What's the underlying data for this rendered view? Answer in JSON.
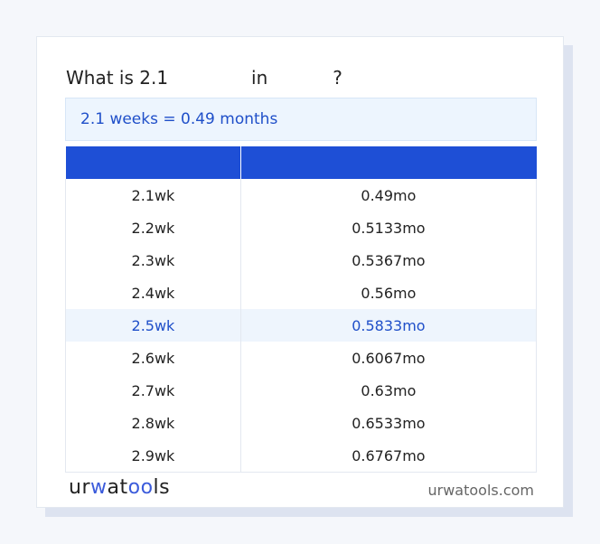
{
  "title": {
    "prefix": "What is 2.1",
    "middle": "in",
    "suffix": "?"
  },
  "result": "2.1 weeks = 0.49 months",
  "table": {
    "headers": [
      "",
      ""
    ],
    "rows": [
      [
        "2.1wk",
        "0.49mo"
      ],
      [
        "2.2wk",
        "0.5133mo"
      ],
      [
        "2.3wk",
        "0.5367mo"
      ],
      [
        "2.4wk",
        "0.56mo"
      ],
      [
        "2.5wk",
        "0.5833mo"
      ],
      [
        "2.6wk",
        "0.6067mo"
      ],
      [
        "2.7wk",
        "0.63mo"
      ],
      [
        "2.8wk",
        "0.6533mo"
      ],
      [
        "2.9wk",
        "0.6767mo"
      ]
    ],
    "highlighted_row": 4
  },
  "footer": {
    "logo": "urwatools",
    "site": "urwatools.com"
  },
  "colors": {
    "accent": "#1e4fd6",
    "highlight_bg": "#eef5fd"
  }
}
